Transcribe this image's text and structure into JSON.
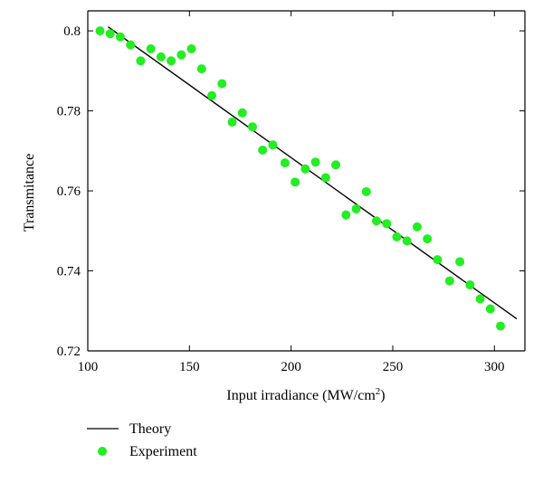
{
  "chart_data": {
    "type": "scatter",
    "xlabel": "Input irradiance (MW/cm",
    "xlabel_sup": "2",
    "xlabel_end": ")",
    "ylabel": "Transmitance",
    "xlim": [
      100,
      315
    ],
    "ylim": [
      0.72,
      0.805
    ],
    "xticks": [
      100,
      150,
      200,
      250,
      300
    ],
    "yticks": [
      0.72,
      0.74,
      0.76,
      0.78,
      0.8
    ],
    "xtick_labels": [
      "100",
      "150",
      "200",
      "250",
      "300"
    ],
    "ytick_labels": [
      "0.72",
      "0.74",
      "0.76",
      "0.78",
      "0.8"
    ],
    "grid": false,
    "legend_position": "bottom-left-below",
    "series": [
      {
        "name": "Theory",
        "kind": "line",
        "color": "#000000",
        "x": [
          110,
          311
        ],
        "y": [
          0.801,
          0.728
        ]
      },
      {
        "name": "Experiment",
        "kind": "scatter",
        "color": "#22ee22",
        "x": [
          106,
          111,
          116,
          121,
          126,
          131,
          136,
          141,
          146,
          151,
          156,
          161,
          166,
          171,
          176,
          181,
          186,
          191,
          197,
          202,
          207,
          212,
          217,
          222,
          227,
          232,
          237,
          242,
          247,
          252,
          257,
          262,
          267,
          272,
          278,
          283,
          288,
          293,
          298,
          303
        ],
        "y": [
          0.8,
          0.7993,
          0.7985,
          0.7965,
          0.7925,
          0.7955,
          0.7935,
          0.7925,
          0.794,
          0.7955,
          0.7905,
          0.7838,
          0.7868,
          0.7772,
          0.7795,
          0.776,
          0.7702,
          0.7715,
          0.767,
          0.7622,
          0.7655,
          0.7672,
          0.7633,
          0.7665,
          0.754,
          0.7555,
          0.7598,
          0.7525,
          0.7518,
          0.7485,
          0.7475,
          0.751,
          0.748,
          0.7428,
          0.7375,
          0.7423,
          0.7365,
          0.733,
          0.7305,
          0.7262
        ]
      }
    ]
  }
}
